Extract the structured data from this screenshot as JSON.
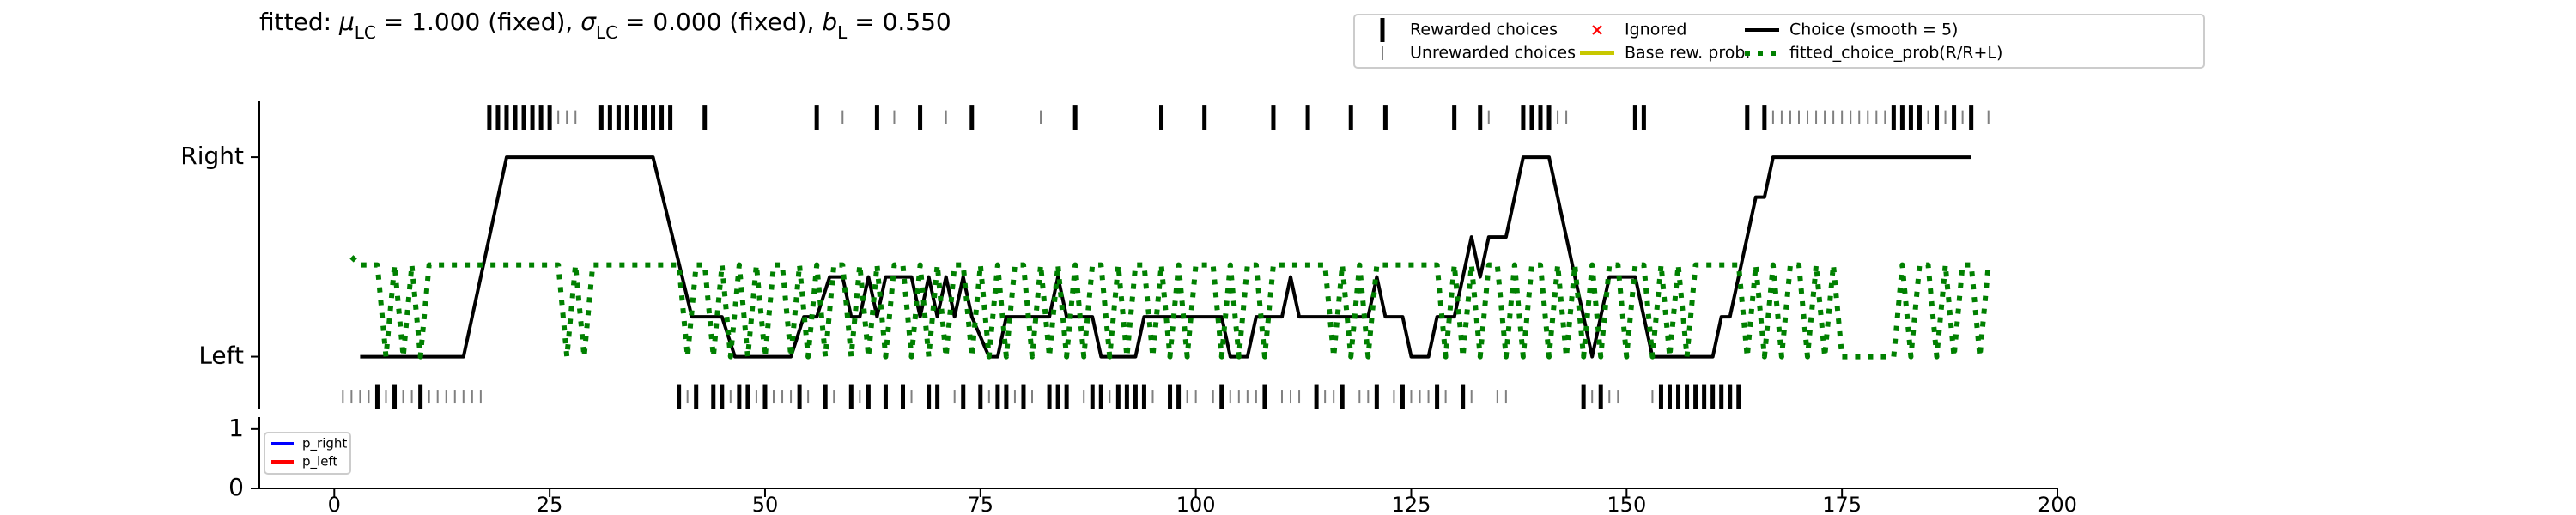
{
  "chart_data": [
    {
      "type": "line",
      "title": [
        {
          "text": "fitted: "
        },
        {
          "text": "μ",
          "style": "italic"
        },
        {
          "text": "LC",
          "style": "sub"
        },
        {
          "text": " = 1.000 (fixed), "
        },
        {
          "text": "σ",
          "style": "italic"
        },
        {
          "text": "LC",
          "style": "sub"
        },
        {
          "text": " = 0.000 (fixed), "
        },
        {
          "text": "b",
          "style": "italic"
        },
        {
          "text": "L",
          "style": "sub"
        },
        {
          "text": " = 0.550"
        }
      ],
      "xlim": [
        -8.7,
        200
      ],
      "ylim": [
        -0.26,
        1.28
      ],
      "yticks": [
        {
          "value": 0,
          "label": "Left"
        },
        {
          "value": 1,
          "label": "Right"
        }
      ],
      "legend": "top",
      "series": [
        {
          "name": "Rewarded choices",
          "color": "#000000",
          "style": "tick_large",
          "x": [
            18,
            19,
            20,
            21,
            22,
            23,
            24,
            25,
            31,
            32,
            33,
            34,
            35,
            36,
            37,
            38,
            39,
            43,
            56,
            63,
            68,
            74,
            86,
            96,
            101,
            109,
            113,
            118,
            122,
            130,
            133,
            138,
            139,
            140,
            141,
            151,
            152,
            164,
            166,
            181,
            182,
            183,
            184,
            186,
            188,
            190,
            5,
            7,
            10,
            40,
            42,
            44,
            45,
            47,
            48,
            50,
            54,
            57,
            60,
            62,
            64,
            66,
            69,
            70,
            73,
            75,
            77,
            78,
            80,
            83,
            84,
            85,
            88,
            89,
            91,
            92,
            93,
            94,
            97,
            98,
            103,
            108,
            114,
            117,
            121,
            124,
            128,
            131,
            145,
            147,
            154,
            155,
            156,
            157,
            158,
            159,
            160,
            161,
            162,
            163
          ],
          "values": [
            1.2,
            1.2,
            1.2,
            1.2,
            1.2,
            1.2,
            1.2,
            1.2,
            1.2,
            1.2,
            1.2,
            1.2,
            1.2,
            1.2,
            1.2,
            1.2,
            1.2,
            1.2,
            1.2,
            1.2,
            1.2,
            1.2,
            1.2,
            1.2,
            1.2,
            1.2,
            1.2,
            1.2,
            1.2,
            1.2,
            1.2,
            1.2,
            1.2,
            1.2,
            1.2,
            1.2,
            1.2,
            1.2,
            1.2,
            1.2,
            1.2,
            1.2,
            1.2,
            1.2,
            1.2,
            1.2,
            -0.2,
            -0.2,
            -0.2,
            -0.2,
            -0.2,
            -0.2,
            -0.2,
            -0.2,
            -0.2,
            -0.2,
            -0.2,
            -0.2,
            -0.2,
            -0.2,
            -0.2,
            -0.2,
            -0.2,
            -0.2,
            -0.2,
            -0.2,
            -0.2,
            -0.2,
            -0.2,
            -0.2,
            -0.2,
            -0.2,
            -0.2,
            -0.2,
            -0.2,
            -0.2,
            -0.2,
            -0.2,
            -0.2,
            -0.2,
            -0.2,
            -0.2,
            -0.2,
            -0.2,
            -0.2,
            -0.2,
            -0.2,
            -0.2,
            -0.2,
            -0.2,
            -0.2,
            -0.2,
            -0.2,
            -0.2,
            -0.2,
            -0.2,
            -0.2,
            -0.2,
            -0.2,
            -0.2
          ]
        },
        {
          "name": "Unrewarded choices",
          "color": "#808080",
          "style": "tick_small",
          "x": [
            26,
            27,
            28,
            59,
            65,
            71,
            82,
            134,
            142,
            143,
            167,
            168,
            169,
            170,
            171,
            172,
            173,
            174,
            175,
            176,
            177,
            178,
            179,
            180,
            185,
            187,
            189,
            192,
            1,
            2,
            3,
            4,
            6,
            8,
            9,
            11,
            12,
            13,
            14,
            15,
            16,
            17,
            41,
            46,
            49,
            51,
            52,
            53,
            55,
            58,
            61,
            67,
            72,
            76,
            79,
            81,
            87,
            90,
            95,
            99,
            100,
            102,
            104,
            105,
            106,
            107,
            110,
            111,
            112,
            115,
            116,
            119,
            120,
            123,
            125,
            126,
            127,
            129,
            132,
            135,
            136,
            146,
            148,
            149,
            153
          ],
          "values": [
            1.2,
            1.2,
            1.2,
            1.2,
            1.2,
            1.2,
            1.2,
            1.2,
            1.2,
            1.2,
            1.2,
            1.2,
            1.2,
            1.2,
            1.2,
            1.2,
            1.2,
            1.2,
            1.2,
            1.2,
            1.2,
            1.2,
            1.2,
            1.2,
            1.2,
            1.2,
            1.2,
            1.2,
            -0.2,
            -0.2,
            -0.2,
            -0.2,
            -0.2,
            -0.2,
            -0.2,
            -0.2,
            -0.2,
            -0.2,
            -0.2,
            -0.2,
            -0.2,
            -0.2,
            -0.2,
            -0.2,
            -0.2,
            -0.2,
            -0.2,
            -0.2,
            -0.2,
            -0.2,
            -0.2,
            -0.2,
            -0.2,
            -0.2,
            -0.2,
            -0.2,
            -0.2,
            -0.2,
            -0.2,
            -0.2,
            -0.2,
            -0.2,
            -0.2,
            -0.2,
            -0.2,
            -0.2,
            -0.2,
            -0.2,
            -0.2,
            -0.2,
            -0.2,
            -0.2,
            -0.2,
            -0.2,
            -0.2,
            -0.2,
            -0.2,
            -0.2,
            -0.2,
            -0.2,
            -0.2,
            -0.2,
            -0.2,
            -0.2,
            -0.2
          ]
        },
        {
          "name": "Ignored",
          "color": "#ff0000",
          "style": "cross",
          "x": [],
          "values": []
        },
        {
          "name": "Base rew. prob.",
          "color": "#c8c800",
          "style": "line",
          "x": [],
          "values": []
        },
        {
          "name": "Choice (smooth = 5)",
          "color": "#000000",
          "style": "line",
          "x": [
            3,
            15,
            20,
            37,
            40,
            41.5,
            45,
            46.5,
            53,
            54.5,
            56,
            57.5,
            59,
            60,
            61,
            62,
            63,
            64,
            67,
            68,
            69,
            70,
            71,
            72,
            73,
            74,
            76,
            77,
            78,
            83,
            84,
            85,
            88,
            89,
            93,
            94,
            103,
            104,
            106,
            107,
            110,
            111,
            112,
            120,
            121,
            122,
            124,
            125,
            127,
            128,
            130,
            131,
            132,
            133,
            134,
            136,
            137,
            138,
            141,
            143,
            145,
            146,
            147,
            148,
            151,
            153,
            160,
            161,
            162,
            164,
            165,
            166,
            167,
            190
          ],
          "values": [
            0,
            0,
            1,
            1,
            0.47,
            0.2,
            0.2,
            0,
            0,
            0.2,
            0.2,
            0.4,
            0.4,
            0.2,
            0.2,
            0.4,
            0.2,
            0.4,
            0.4,
            0.2,
            0.4,
            0.2,
            0.4,
            0.2,
            0.4,
            0.2,
            0,
            0,
            0.2,
            0.2,
            0.4,
            0.2,
            0.2,
            0,
            0,
            0.2,
            0.2,
            0,
            0,
            0.2,
            0.2,
            0.4,
            0.2,
            0.2,
            0.4,
            0.2,
            0.2,
            0,
            0,
            0.2,
            0.2,
            0.4,
            0.6,
            0.4,
            0.6,
            0.6,
            0.8,
            1,
            1,
            0.6,
            0.2,
            0,
            0.2,
            0.4,
            0.4,
            0,
            0,
            0.2,
            0.2,
            0.6,
            0.8,
            0.8,
            1,
            1
          ]
        },
        {
          "name": "fitted_choice_prob(R/R+L)",
          "color": "#008000",
          "style": "dotted",
          "x": [
            2,
            3,
            4,
            5,
            6,
            7,
            8,
            9,
            10,
            11,
            12,
            13,
            14,
            15,
            16,
            17,
            18,
            19,
            20,
            21,
            22,
            23,
            24,
            25,
            26,
            27,
            28,
            29,
            30,
            31,
            32,
            33,
            34,
            35,
            36,
            37,
            38,
            39,
            40,
            41,
            42,
            43,
            44,
            45,
            46,
            47,
            48,
            49,
            50,
            51,
            52,
            53,
            54,
            55,
            56,
            57,
            58,
            59,
            60,
            61,
            62,
            63,
            64,
            65,
            66,
            67,
            68,
            69,
            70,
            71,
            72,
            73,
            74,
            75,
            76,
            77,
            78,
            79,
            80,
            81,
            82,
            83,
            84,
            85,
            86,
            87,
            88,
            89,
            90,
            91,
            92,
            93,
            94,
            95,
            96,
            97,
            98,
            99,
            100,
            101,
            102,
            103,
            104,
            105,
            106,
            107,
            108,
            109,
            110,
            111,
            112,
            113,
            114,
            115,
            116,
            117,
            118,
            119,
            120,
            121,
            122,
            123,
            124,
            125,
            126,
            127,
            128,
            129,
            130,
            131,
            132,
            133,
            134,
            135,
            136,
            137,
            138,
            139,
            140,
            141,
            142,
            143,
            144,
            145,
            146,
            147,
            148,
            149,
            150,
            151,
            152,
            153,
            154,
            155,
            156,
            157,
            158,
            159,
            160,
            161,
            162,
            163,
            164,
            165,
            166,
            167,
            168,
            169,
            170,
            171,
            172,
            173,
            174,
            175,
            176,
            177,
            178,
            179,
            180,
            181,
            182,
            183,
            184,
            185,
            186,
            187,
            188,
            189,
            190,
            191,
            192
          ],
          "values": [
            0.5,
            0.46,
            0.46,
            0.46,
            0,
            0.46,
            0,
            0.46,
            0,
            0.46,
            0.46,
            0.46,
            0.46,
            0.46,
            0.46,
            0.46,
            0.46,
            0.46,
            0.46,
            0.46,
            0.46,
            0.46,
            0.46,
            0.46,
            0.46,
            0,
            0.46,
            0,
            0.46,
            0.46,
            0.46,
            0.46,
            0.46,
            0.46,
            0.46,
            0.46,
            0.46,
            0.46,
            0.46,
            0,
            0.46,
            0.46,
            0,
            0.46,
            0,
            0.46,
            0,
            0.46,
            0,
            0.46,
            0.46,
            0,
            0.46,
            0,
            0.46,
            0,
            0.46,
            0.46,
            0,
            0.46,
            0,
            0.46,
            0,
            0.46,
            0.46,
            0,
            0.46,
            0,
            0.46,
            0,
            0.46,
            0.46,
            0,
            0.46,
            0,
            0.46,
            0,
            0.46,
            0.46,
            0,
            0.46,
            0,
            0.46,
            0,
            0.46,
            0,
            0.46,
            0.46,
            0,
            0.46,
            0,
            0.46,
            0.46,
            0,
            0.46,
            0,
            0.46,
            0,
            0.46,
            0.46,
            0.46,
            0,
            0.46,
            0,
            0.46,
            0.46,
            0,
            0.46,
            0.46,
            0.46,
            0.46,
            0.46,
            0.46,
            0.46,
            0,
            0.46,
            0,
            0.46,
            0,
            0.46,
            0.46,
            0.46,
            0.46,
            0.46,
            0.46,
            0.46,
            0.46,
            0,
            0.46,
            0,
            0.46,
            0,
            0.46,
            0.46,
            0,
            0.46,
            0,
            0.46,
            0.46,
            0,
            0.46,
            0,
            0.46,
            0,
            0.46,
            0,
            0.46,
            0.46,
            0,
            0.46,
            0.46,
            0,
            0.46,
            0,
            0.46,
            0,
            0.46,
            0.46,
            0.46,
            0.46,
            0.46,
            0.46,
            0,
            0.46,
            0,
            0.46,
            0,
            0.46,
            0.46,
            0,
            0.46,
            0,
            0.46,
            0,
            0,
            0,
            0,
            0,
            0,
            0,
            0.46,
            0,
            0.46,
            0.46,
            0,
            0.46,
            0,
            0.46,
            0.46,
            0,
            0.46
          ]
        }
      ]
    },
    {
      "type": "line",
      "xlim": [
        -8.7,
        200
      ],
      "ylim": [
        0,
        1.2
      ],
      "xticks": [
        0,
        25,
        50,
        75,
        100,
        125,
        150,
        175,
        200
      ],
      "yticks": [
        0,
        1
      ],
      "legend": "upper left",
      "series": [
        {
          "name": "p_right",
          "color": "#0000ff",
          "style": "line",
          "x": [],
          "values": []
        },
        {
          "name": "p_left",
          "color": "#ff0000",
          "style": "line",
          "x": [],
          "values": []
        }
      ]
    }
  ]
}
